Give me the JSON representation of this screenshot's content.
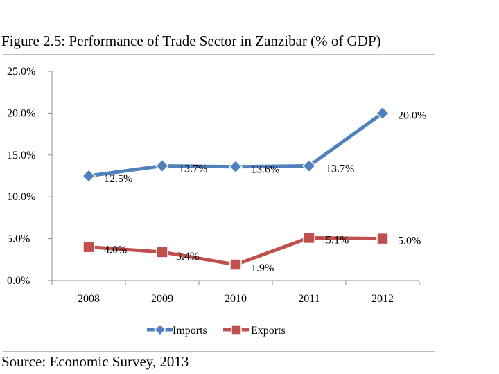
{
  "figure": {
    "title": "Figure 2.5:  Performance of Trade Sector in Zanzibar (% of GDP)",
    "source": "Source: Economic Survey, 2013"
  },
  "colors": {
    "imports": "#4f81bd",
    "exports": "#c0504d",
    "axis": "#8c8c8c"
  },
  "chart_data": {
    "type": "line",
    "title": "Performance of Trade Sector in Zanzibar (% of GDP)",
    "xlabel": "",
    "ylabel": "",
    "categories": [
      "2008",
      "2009",
      "2010",
      "2011",
      "2012"
    ],
    "ylim": [
      0,
      25
    ],
    "yticks": [
      0,
      5,
      10,
      15,
      20,
      25
    ],
    "ytick_labels": [
      "0.0%",
      "5.0%",
      "10.0%",
      "15.0%",
      "20.0%",
      "25.0%"
    ],
    "grid": false,
    "legend": "bottom",
    "series": [
      {
        "name": "Imports",
        "marker": "diamond",
        "values": [
          12.5,
          13.7,
          13.6,
          13.7,
          20.0
        ],
        "labels": [
          "12.5%",
          "13.7%",
          "13.6%",
          "13.7%",
          "20.0%"
        ]
      },
      {
        "name": "Exports",
        "marker": "square",
        "values": [
          4.0,
          3.4,
          1.9,
          5.1,
          5.0
        ],
        "labels": [
          "4.0%",
          "3.4%",
          "1.9%",
          "5.1%",
          "5.0%"
        ]
      }
    ]
  }
}
